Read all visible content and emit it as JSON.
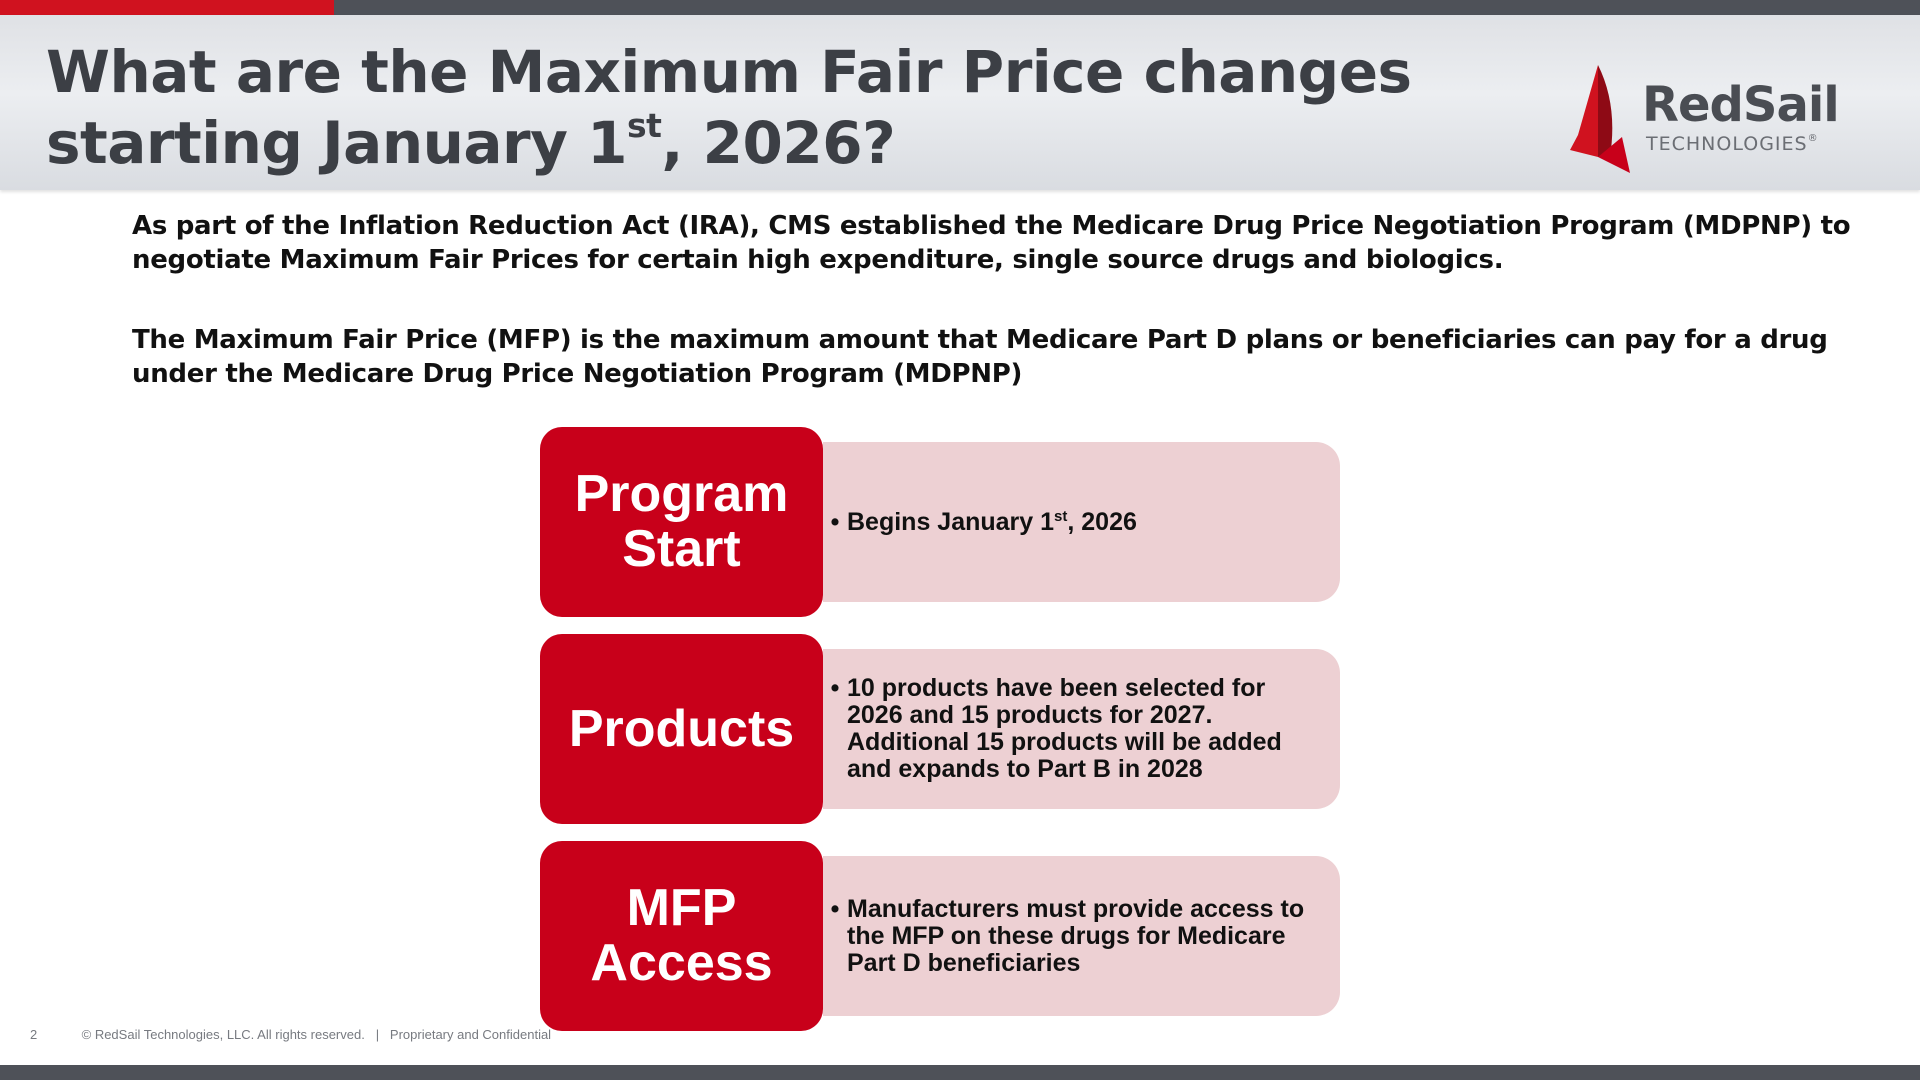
{
  "slide": {
    "title_line1": "What are the Maximum Fair Price changes",
    "title_line2_prefix": "starting January 1",
    "title_line2_sup": "st",
    "title_line2_suffix": ", 2026?",
    "paragraph1": "As part of the Inflation Reduction Act (IRA), CMS established the Medicare Drug Price Negotiation Program (MDPNP) to negotiate Maximum Fair Prices for certain high expenditure, single source drugs and biologics.",
    "paragraph2": "The Maximum Fair Price (MFP) is the maximum amount that Medicare Part D plans or beneficiaries can pay for a drug under the Medicare Drug Price Negotiation Program (MDPNP)"
  },
  "logo": {
    "name": "RedSail",
    "subtitle": "TECHNOLOGIES",
    "mark": "®",
    "icon": "sail-icon",
    "color": "#c8001a"
  },
  "rows": [
    {
      "label_line1": "Program",
      "label_line2": "Start",
      "bullet_prefix": "Begins January 1",
      "bullet_sup": "st",
      "bullet_suffix": ", 2026"
    },
    {
      "label": "Products",
      "bullet": "10 products have been selected for 2026 and 15 products for 2027. Additional 15 products will be added and expands to Part B in 2028"
    },
    {
      "label_line1": "MFP",
      "label_line2": "Access",
      "bullet": "Manufacturers must provide access to the MFP on these drugs for Medicare Part D beneficiaries"
    }
  ],
  "footer": {
    "page_number": "2",
    "copyright": "© RedSail Technologies, LLC. All rights reserved.",
    "separator": "|",
    "confidential": "Proprietary and Confidential"
  },
  "colors": {
    "accent_red": "#c8001a",
    "light_pink": "#edd0d3",
    "header_gray": "#e3e5e9",
    "bar_dark": "#4e5158"
  }
}
